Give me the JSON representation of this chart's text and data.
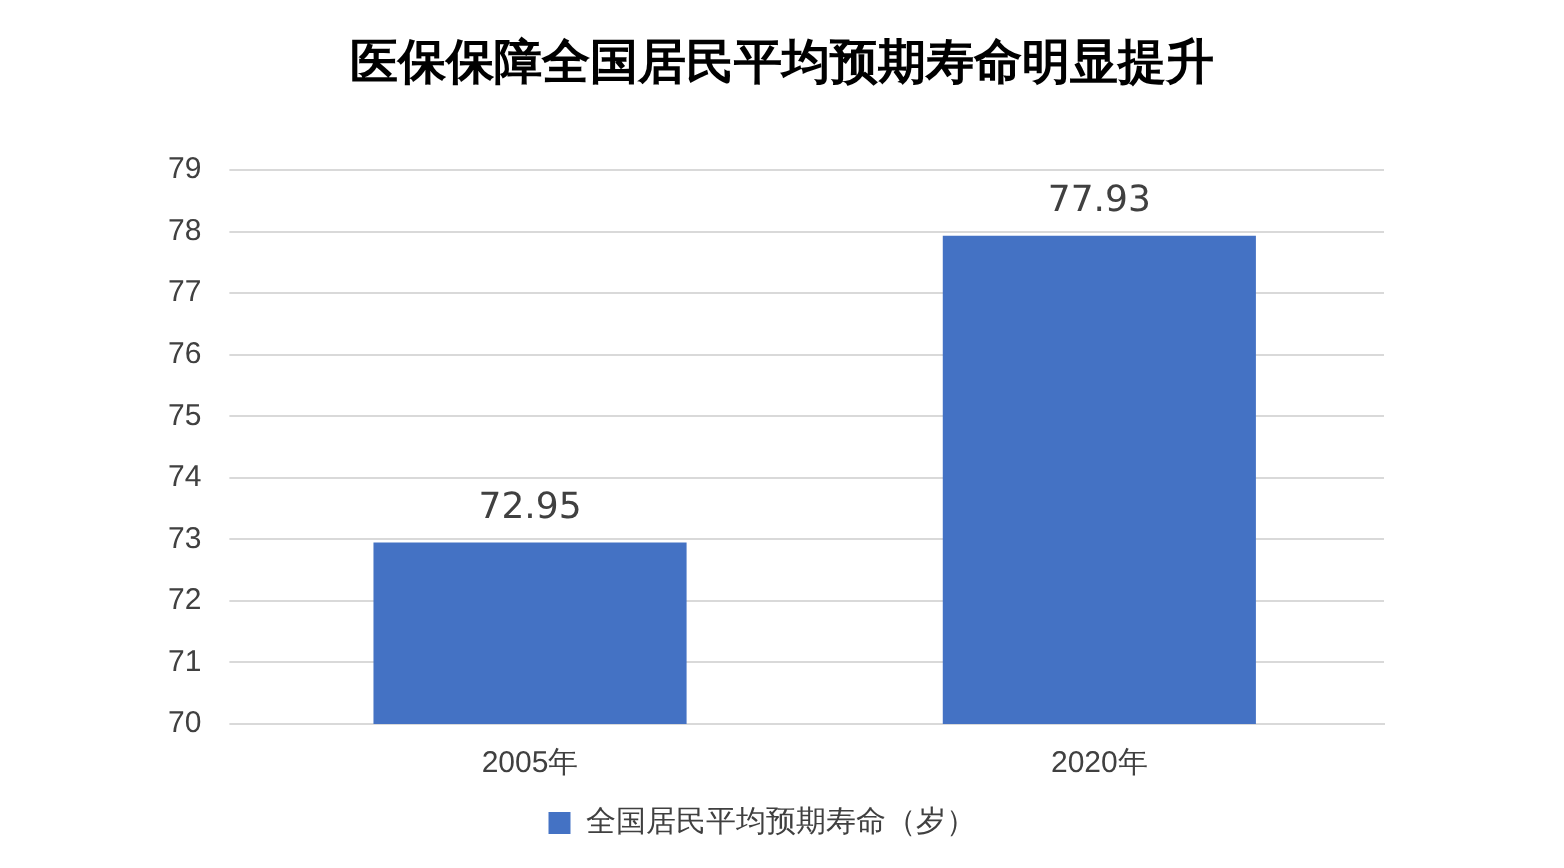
{
  "chart_data": {
    "type": "bar",
    "title": "医保保障全国居民平均预期寿命明显提升",
    "categories": [
      "2005年",
      "2020年"
    ],
    "series": [
      {
        "name": "全国居民平均预期寿命（岁）",
        "color": "#4472c4",
        "values": [
          72.95,
          77.93
        ]
      }
    ],
    "ylim": [
      70,
      79
    ],
    "yticks": [
      70,
      71,
      72,
      73,
      74,
      75,
      76,
      77,
      78,
      79
    ],
    "grid": "y",
    "legend": "bottom",
    "data_labels": true
  }
}
